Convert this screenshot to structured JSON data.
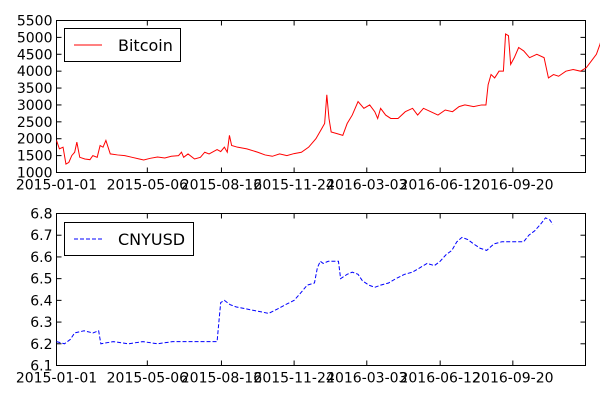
{
  "chart_data": [
    {
      "type": "line",
      "title": "",
      "xlabel": "",
      "ylabel": "",
      "x_tick_labels": [
        "2015-01-01",
        "2015-05-06",
        "2015-08-16",
        "2015-11-24",
        "2016-03-03",
        "2016-06-12",
        "2016-09-20"
      ],
      "x_tick_dates": [
        "2015-01-01",
        "2015-05-06",
        "2015-08-16",
        "2015-11-24",
        "2016-03-03",
        "2016-06-12",
        "2016-09-20"
      ],
      "xlim": [
        "2015-01-01",
        "2016-12-29"
      ],
      "ylim": [
        1000,
        5500
      ],
      "y_ticks": [
        1000,
        1500,
        2000,
        2500,
        3000,
        3500,
        4000,
        4500,
        5000,
        5500
      ],
      "grid": false,
      "legend": {
        "placement": "top-left"
      },
      "series": [
        {
          "name": "Bitcoin",
          "color": "#ff0000",
          "line_style": "solid",
          "points": [
            [
              "2015-01-01",
              1950
            ],
            [
              "2015-01-05",
              1700
            ],
            [
              "2015-01-10",
              1750
            ],
            [
              "2015-01-14",
              1250
            ],
            [
              "2015-01-18",
              1300
            ],
            [
              "2015-01-22",
              1500
            ],
            [
              "2015-01-26",
              1600
            ],
            [
              "2015-01-29",
              1900
            ],
            [
              "2015-02-02",
              1450
            ],
            [
              "2015-02-09",
              1400
            ],
            [
              "2015-02-16",
              1380
            ],
            [
              "2015-02-20",
              1500
            ],
            [
              "2015-02-26",
              1450
            ],
            [
              "2015-03-02",
              1800
            ],
            [
              "2015-03-06",
              1750
            ],
            [
              "2015-03-10",
              1950
            ],
            [
              "2015-03-16",
              1550
            ],
            [
              "2015-03-26",
              1520
            ],
            [
              "2015-04-05",
              1500
            ],
            [
              "2015-04-15",
              1450
            ],
            [
              "2015-04-25",
              1400
            ],
            [
              "2015-05-01",
              1370
            ],
            [
              "2015-05-10",
              1420
            ],
            [
              "2015-05-20",
              1460
            ],
            [
              "2015-05-30",
              1430
            ],
            [
              "2015-06-08",
              1480
            ],
            [
              "2015-06-18",
              1500
            ],
            [
              "2015-06-22",
              1600
            ],
            [
              "2015-06-25",
              1450
            ],
            [
              "2015-07-01",
              1550
            ],
            [
              "2015-07-10",
              1400
            ],
            [
              "2015-07-18",
              1450
            ],
            [
              "2015-07-24",
              1600
            ],
            [
              "2015-07-30",
              1550
            ],
            [
              "2015-08-05",
              1620
            ],
            [
              "2015-08-10",
              1680
            ],
            [
              "2015-08-15",
              1620
            ],
            [
              "2015-08-20",
              1750
            ],
            [
              "2015-08-24",
              1600
            ],
            [
              "2015-08-27",
              2100
            ],
            [
              "2015-08-30",
              1800
            ],
            [
              "2015-09-07",
              1750
            ],
            [
              "2015-09-20",
              1700
            ],
            [
              "2015-10-05",
              1600
            ],
            [
              "2015-10-15",
              1520
            ],
            [
              "2015-10-25",
              1480
            ],
            [
              "2015-11-04",
              1550
            ],
            [
              "2015-11-14",
              1500
            ],
            [
              "2015-11-24",
              1560
            ],
            [
              "2015-12-04",
              1600
            ],
            [
              "2015-12-14",
              1750
            ],
            [
              "2015-12-24",
              2000
            ],
            [
              "2016-01-01",
              2300
            ],
            [
              "2016-01-05",
              2450
            ],
            [
              "2016-01-08",
              3300
            ],
            [
              "2016-01-11",
              2600
            ],
            [
              "2016-01-14",
              2200
            ],
            [
              "2016-01-22",
              2150
            ],
            [
              "2016-01-30",
              2100
            ],
            [
              "2016-02-05",
              2450
            ],
            [
              "2016-02-12",
              2700
            ],
            [
              "2016-02-20",
              3100
            ],
            [
              "2016-02-28",
              2900
            ],
            [
              "2016-03-07",
              3000
            ],
            [
              "2016-03-14",
              2800
            ],
            [
              "2016-03-18",
              2600
            ],
            [
              "2016-03-22",
              2900
            ],
            [
              "2016-03-29",
              2700
            ],
            [
              "2016-04-05",
              2600
            ],
            [
              "2016-04-15",
              2600
            ],
            [
              "2016-04-25",
              2800
            ],
            [
              "2016-05-05",
              2900
            ],
            [
              "2016-05-12",
              2700
            ],
            [
              "2016-05-20",
              2900
            ],
            [
              "2016-05-30",
              2800
            ],
            [
              "2016-06-09",
              2700
            ],
            [
              "2016-06-19",
              2850
            ],
            [
              "2016-06-29",
              2800
            ],
            [
              "2016-07-08",
              2950
            ],
            [
              "2016-07-16",
              3000
            ],
            [
              "2016-07-28",
              2950
            ],
            [
              "2016-08-08",
              3000
            ],
            [
              "2016-08-14",
              3000
            ],
            [
              "2016-08-17",
              3600
            ],
            [
              "2016-08-21",
              3900
            ],
            [
              "2016-08-26",
              3800
            ],
            [
              "2016-09-01",
              4000
            ],
            [
              "2016-09-07",
              4000
            ],
            [
              "2016-09-10",
              5100
            ],
            [
              "2016-09-14",
              5050
            ],
            [
              "2016-09-17",
              4200
            ],
            [
              "2016-09-22",
              4400
            ],
            [
              "2016-09-28",
              4700
            ],
            [
              "2016-10-05",
              4600
            ],
            [
              "2016-10-13",
              4400
            ],
            [
              "2016-10-23",
              4500
            ],
            [
              "2016-11-02",
              4400
            ],
            [
              "2016-11-08",
              3800
            ],
            [
              "2016-11-15",
              3900
            ],
            [
              "2016-11-22",
              3850
            ],
            [
              "2016-12-02",
              4000
            ],
            [
              "2016-12-12",
              4050
            ],
            [
              "2016-12-22",
              4000
            ],
            [
              "2016-12-30",
              4100
            ],
            [
              "2017-01-06",
              4300
            ],
            [
              "2017-01-13",
              4500
            ],
            [
              "2017-01-18",
              4800
            ],
            [
              "2017-01-22",
              5100
            ]
          ]
        }
      ]
    },
    {
      "type": "line",
      "title": "",
      "xlabel": "",
      "ylabel": "",
      "x_tick_labels": [
        "2015-01-01",
        "2015-05-06",
        "2015-08-16",
        "2015-11-24",
        "2016-03-03",
        "2016-06-12",
        "2016-09-20"
      ],
      "x_tick_dates": [
        "2015-01-01",
        "2015-05-06",
        "2015-08-16",
        "2015-11-24",
        "2016-03-03",
        "2016-06-12",
        "2016-09-20"
      ],
      "xlim": [
        "2015-01-01",
        "2016-12-29"
      ],
      "ylim": [
        6.1,
        6.8
      ],
      "y_ticks": [
        6.1,
        6.2,
        6.3,
        6.4,
        6.5,
        6.6,
        6.7,
        6.8
      ],
      "grid": false,
      "legend": {
        "placement": "top-left"
      },
      "series": [
        {
          "name": "CNYUSD",
          "color": "#0000ff",
          "line_style": "dashed",
          "points": [
            [
              "2015-01-01",
              6.21
            ],
            [
              "2015-01-12",
              6.2
            ],
            [
              "2015-01-20",
              6.22
            ],
            [
              "2015-01-26",
              6.25
            ],
            [
              "2015-02-08",
              6.26
            ],
            [
              "2015-02-20",
              6.25
            ],
            [
              "2015-02-28",
              6.26
            ],
            [
              "2015-03-03",
              6.2
            ],
            [
              "2015-03-20",
              6.21
            ],
            [
              "2015-04-10",
              6.2
            ],
            [
              "2015-04-30",
              6.21
            ],
            [
              "2015-05-20",
              6.2
            ],
            [
              "2015-06-10",
              6.21
            ],
            [
              "2015-07-01",
              6.21
            ],
            [
              "2015-07-20",
              6.21
            ],
            [
              "2015-08-10",
              6.21
            ],
            [
              "2015-08-13",
              6.32
            ],
            [
              "2015-08-15",
              6.39
            ],
            [
              "2015-08-20",
              6.4
            ],
            [
              "2015-08-28",
              6.38
            ],
            [
              "2015-09-05",
              6.37
            ],
            [
              "2015-09-20",
              6.36
            ],
            [
              "2015-10-05",
              6.35
            ],
            [
              "2015-10-20",
              6.34
            ],
            [
              "2015-11-01",
              6.36
            ],
            [
              "2015-11-12",
              6.38
            ],
            [
              "2015-11-24",
              6.4
            ],
            [
              "2015-12-02",
              6.43
            ],
            [
              "2015-12-12",
              6.47
            ],
            [
              "2015-12-22",
              6.48
            ],
            [
              "2015-12-26",
              6.55
            ],
            [
              "2015-12-30",
              6.58
            ],
            [
              "2016-01-03",
              6.57
            ],
            [
              "2016-01-10",
              6.58
            ],
            [
              "2016-01-18",
              6.58
            ],
            [
              "2016-01-24",
              6.58
            ],
            [
              "2016-01-27",
              6.5
            ],
            [
              "2016-02-05",
              6.52
            ],
            [
              "2016-02-12",
              6.53
            ],
            [
              "2016-02-20",
              6.52
            ],
            [
              "2016-02-26",
              6.49
            ],
            [
              "2016-03-06",
              6.47
            ],
            [
              "2016-03-14",
              6.46
            ],
            [
              "2016-03-22",
              6.47
            ],
            [
              "2016-04-02",
              6.48
            ],
            [
              "2016-04-12",
              6.5
            ],
            [
              "2016-04-24",
              6.52
            ],
            [
              "2016-05-05",
              6.53
            ],
            [
              "2016-05-15",
              6.55
            ],
            [
              "2016-05-25",
              6.57
            ],
            [
              "2016-06-04",
              6.56
            ],
            [
              "2016-06-12",
              6.58
            ],
            [
              "2016-06-20",
              6.61
            ],
            [
              "2016-06-28",
              6.63
            ],
            [
              "2016-07-05",
              6.67
            ],
            [
              "2016-07-12",
              6.69
            ],
            [
              "2016-07-20",
              6.68
            ],
            [
              "2016-07-28",
              6.66
            ],
            [
              "2016-08-06",
              6.64
            ],
            [
              "2016-08-15",
              6.63
            ],
            [
              "2016-08-25",
              6.66
            ],
            [
              "2016-09-05",
              6.67
            ],
            [
              "2016-09-15",
              6.67
            ],
            [
              "2016-09-25",
              6.67
            ],
            [
              "2016-10-05",
              6.67
            ],
            [
              "2016-10-12",
              6.7
            ],
            [
              "2016-10-20",
              6.72
            ],
            [
              "2016-10-28",
              6.75
            ],
            [
              "2016-11-04",
              6.78
            ],
            [
              "2016-11-10",
              6.77
            ],
            [
              "2016-11-14",
              6.75
            ]
          ]
        }
      ]
    }
  ]
}
